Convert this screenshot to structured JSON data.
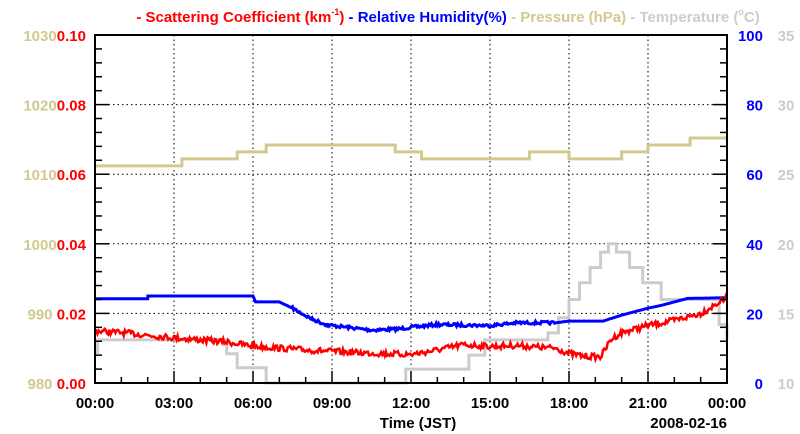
{
  "chart_data": {
    "type": "line",
    "title_parts": [
      {
        "text": "- Scattering Coefficient (km",
        "sup": "-1",
        "tail": ")",
        "color": "#ff0000"
      },
      {
        "text": " - Relative Humidity(%)",
        "color": "#0000ff"
      },
      {
        "text": " - Pressure (hPa)",
        "color": "#d2c98e"
      },
      {
        "text": " - Temperature (",
        "sup": "o",
        "tail": "C)",
        "color": "#cccccc"
      }
    ],
    "xlabel": "Time (JST)",
    "date_label": "2008-02-16",
    "xlim": [
      0,
      24
    ],
    "x_tick_labels": [
      "00:00",
      "03:00",
      "06:00",
      "09:00",
      "12:00",
      "15:00",
      "18:00",
      "21:00",
      "00:00"
    ],
    "axes": {
      "scattering": {
        "range": [
          0,
          0.1
        ],
        "ticks": [
          "0.00",
          "0.02",
          "0.04",
          "0.06",
          "0.08",
          "0.10"
        ],
        "color": "#ff0000"
      },
      "pressure": {
        "range": [
          980,
          1030
        ],
        "ticks": [
          "980",
          "990",
          "1000",
          "1010",
          "1020",
          "1030"
        ],
        "color": "#d2c98e"
      },
      "humidity": {
        "range": [
          0,
          100
        ],
        "ticks": [
          "0",
          "20",
          "40",
          "60",
          "80",
          "100"
        ],
        "color": "#0000ff"
      },
      "temperature": {
        "range": [
          10,
          35
        ],
        "ticks": [
          "10",
          "15",
          "20",
          "25",
          "30",
          "35"
        ],
        "color": "#cccccc"
      }
    },
    "grid": true,
    "series": [
      {
        "name": "Pressure",
        "axis": "pressure",
        "step": true,
        "color": "#d2c98e",
        "x": [
          0,
          3.3,
          5.4,
          6.5,
          11.4,
          12.4,
          16.5,
          18,
          20,
          21,
          22.6,
          24
        ],
        "y": [
          1011.2,
          1012.2,
          1013.2,
          1014.2,
          1013.2,
          1012.2,
          1013.2,
          1012.2,
          1013.2,
          1014.2,
          1015.2,
          1015.2
        ]
      },
      {
        "name": "Temperature",
        "axis": "temperature",
        "step": true,
        "color": "#cccccc",
        "x": [
          0,
          0.1,
          5,
          5.4,
          6.5,
          11.8,
          14.2,
          14.8,
          15.3,
          17.2,
          17.6,
          18,
          18.4,
          18.8,
          19.2,
          19.5,
          19.8,
          20.3,
          20.8,
          21.5,
          23.7,
          24
        ],
        "y": [
          12.2,
          13.1,
          12.1,
          11.1,
          10.0,
          11.0,
          12.0,
          13.1,
          13.1,
          13.6,
          14.7,
          16.0,
          17.2,
          18.3,
          19.4,
          20.0,
          19.4,
          18.3,
          17.2,
          16.0,
          14.2,
          13.1
        ]
      },
      {
        "name": "Relative Humidity",
        "axis": "humidity",
        "step": false,
        "color": "#0000ff",
        "x": [
          0,
          2,
          2.01,
          6,
          6.1,
          7,
          7.5,
          8.2,
          8.8,
          10.5,
          11.5,
          12,
          13,
          15,
          16,
          17.5,
          18,
          19.3,
          20,
          20.5,
          21,
          21.5,
          22.5,
          24
        ],
        "y": [
          24.2,
          24.2,
          25.0,
          25.0,
          23.3,
          23.3,
          21.5,
          18.5,
          16.7,
          15.2,
          15.5,
          16.0,
          16.8,
          16.5,
          17.3,
          17.3,
          17.8,
          17.8,
          19.5,
          20.5,
          21.5,
          22.3,
          24.3,
          24.5
        ]
      },
      {
        "name": "Scattering Coefficient",
        "axis": "scattering",
        "step": false,
        "color": "#ff0000",
        "x": [
          0,
          1,
          3,
          5,
          6,
          8,
          10,
          12,
          13,
          14,
          15,
          16,
          17,
          17.5,
          18,
          18.5,
          19.2,
          19.6,
          20,
          21,
          22,
          23,
          24
        ],
        "y": [
          0.015,
          0.0145,
          0.013,
          0.0118,
          0.0106,
          0.0095,
          0.0087,
          0.0082,
          0.0095,
          0.011,
          0.0105,
          0.0108,
          0.0102,
          0.01,
          0.0085,
          0.0078,
          0.0075,
          0.0125,
          0.0145,
          0.0165,
          0.018,
          0.02,
          0.0245
        ]
      }
    ]
  }
}
